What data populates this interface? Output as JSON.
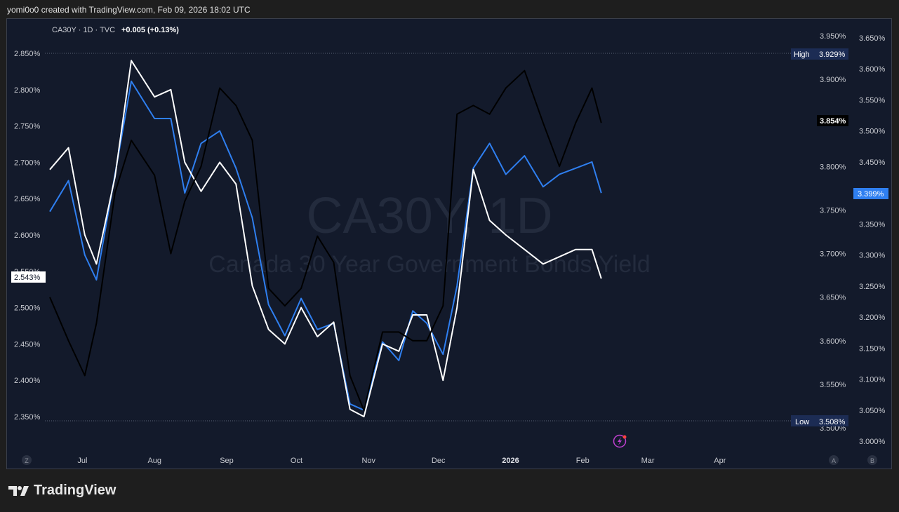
{
  "header": {
    "caption": "yomi0o0 created with TradingView.com, Feb 09, 2026 18:02 UTC"
  },
  "legend": {
    "symbol_line": "CA30Y · 1D · TVC",
    "change": "+0.005 (+0.13%)"
  },
  "watermark": {
    "big": "CA30Y, 1D",
    "small": "Canada 30 Year Government Bonds Yield"
  },
  "footer": {
    "brand": "TradingView"
  },
  "controls": {
    "z": "Z",
    "a": "A",
    "b": "B"
  },
  "colors": {
    "background": "#131a2b",
    "blue_series": "#2f7ff0",
    "white_series": "#ffffff",
    "black_series": "#000000"
  },
  "chart_data": {
    "type": "line",
    "x_ticks": [
      "Jul",
      "Aug",
      "Sep",
      "Oct",
      "Nov",
      "Dec",
      "2026",
      "Feb",
      "Mar",
      "Apr"
    ],
    "axes": {
      "left": {
        "ticks": [
          "2.850%",
          "2.800%",
          "2.750%",
          "2.700%",
          "2.650%",
          "2.600%",
          "2.550%",
          "2.500%",
          "2.450%",
          "2.400%",
          "2.350%"
        ],
        "range": [
          2.35,
          2.85
        ]
      },
      "middle": {
        "ticks": [
          "3.950%",
          "3.900%",
          "3.850%",
          "3.800%",
          "3.750%",
          "3.700%",
          "3.650%",
          "3.600%",
          "3.550%",
          "3.500%"
        ],
        "range": [
          3.5,
          3.95
        ]
      },
      "right": {
        "ticks": [
          "3.650%",
          "3.600%",
          "3.550%",
          "3.500%",
          "3.450%",
          "3.400%",
          "3.350%",
          "3.300%",
          "3.250%",
          "3.200%",
          "3.150%",
          "3.100%",
          "3.050%",
          "3.000%"
        ],
        "range": [
          3.0,
          3.65
        ]
      }
    },
    "labels": {
      "high_label": "High",
      "high_value": "3.929%",
      "low_label": "Low",
      "low_value": "3.508%",
      "black_last": "3.854%",
      "blue_last": "3.399%",
      "white_last": "2.543%"
    },
    "series": [
      {
        "color": "#2f7ff0",
        "axis": "right",
        "x": [
          "2025-06-17",
          "2025-06-25",
          "2025-07-02",
          "2025-07-07",
          "2025-07-15",
          "2025-07-22",
          "2025-08-01",
          "2025-08-08",
          "2025-08-14",
          "2025-08-21",
          "2025-08-29",
          "2025-09-05",
          "2025-09-12",
          "2025-09-19",
          "2025-09-26",
          "2025-10-03",
          "2025-10-10",
          "2025-10-17",
          "2025-10-24",
          "2025-10-30",
          "2025-11-07",
          "2025-11-14",
          "2025-11-20",
          "2025-11-26",
          "2025-12-03",
          "2025-12-09",
          "2025-12-16",
          "2025-12-23",
          "2025-12-30",
          "2026-01-07",
          "2026-01-15",
          "2026-01-22",
          "2026-01-29",
          "2026-02-05",
          "2026-02-09"
        ],
        "y": [
          3.37,
          3.42,
          3.3,
          3.26,
          3.43,
          3.58,
          3.52,
          3.52,
          3.4,
          3.48,
          3.5,
          3.44,
          3.36,
          3.22,
          3.17,
          3.23,
          3.18,
          3.19,
          3.06,
          3.05,
          3.16,
          3.13,
          3.21,
          3.19,
          3.14,
          3.25,
          3.44,
          3.48,
          3.43,
          3.46,
          3.41,
          3.43,
          3.44,
          3.45,
          3.4
        ]
      },
      {
        "color": "#ffffff",
        "axis": "left",
        "x": [
          "2025-06-17",
          "2025-06-25",
          "2025-07-02",
          "2025-07-07",
          "2025-07-15",
          "2025-07-22",
          "2025-08-01",
          "2025-08-08",
          "2025-08-14",
          "2025-08-21",
          "2025-08-29",
          "2025-09-05",
          "2025-09-12",
          "2025-09-19",
          "2025-09-26",
          "2025-10-03",
          "2025-10-10",
          "2025-10-17",
          "2025-10-24",
          "2025-10-30",
          "2025-11-07",
          "2025-11-14",
          "2025-11-20",
          "2025-11-26",
          "2025-12-03",
          "2025-12-09",
          "2025-12-16",
          "2025-12-23",
          "2025-12-30",
          "2026-01-07",
          "2026-01-15",
          "2026-01-22",
          "2026-01-29",
          "2026-02-05",
          "2026-02-09"
        ],
        "y": [
          2.69,
          2.72,
          2.6,
          2.56,
          2.68,
          2.84,
          2.79,
          2.8,
          2.7,
          2.66,
          2.7,
          2.67,
          2.53,
          2.47,
          2.45,
          2.5,
          2.46,
          2.48,
          2.36,
          2.35,
          2.45,
          2.44,
          2.49,
          2.49,
          2.4,
          2.5,
          2.69,
          2.62,
          2.6,
          2.58,
          2.56,
          2.57,
          2.58,
          2.58,
          2.54
        ]
      },
      {
        "color": "#000000",
        "axis": "middle",
        "x": [
          "2025-06-17",
          "2025-06-25",
          "2025-07-02",
          "2025-07-07",
          "2025-07-15",
          "2025-07-22",
          "2025-08-01",
          "2025-08-08",
          "2025-08-14",
          "2025-08-21",
          "2025-08-29",
          "2025-09-05",
          "2025-09-12",
          "2025-09-19",
          "2025-09-26",
          "2025-10-03",
          "2025-10-10",
          "2025-10-17",
          "2025-10-24",
          "2025-10-30",
          "2025-11-07",
          "2025-11-14",
          "2025-11-20",
          "2025-11-26",
          "2025-12-03",
          "2025-12-09",
          "2025-12-16",
          "2025-12-23",
          "2025-12-30",
          "2026-01-07",
          "2026-01-15",
          "2026-01-22",
          "2026-01-29",
          "2026-02-05",
          "2026-02-09"
        ],
        "y": [
          3.65,
          3.6,
          3.56,
          3.62,
          3.77,
          3.83,
          3.79,
          3.7,
          3.76,
          3.8,
          3.89,
          3.87,
          3.83,
          3.66,
          3.64,
          3.66,
          3.72,
          3.69,
          3.56,
          3.52,
          3.61,
          3.61,
          3.6,
          3.6,
          3.64,
          3.86,
          3.87,
          3.86,
          3.89,
          3.91,
          3.85,
          3.8,
          3.85,
          3.89,
          3.85
        ]
      }
    ]
  }
}
